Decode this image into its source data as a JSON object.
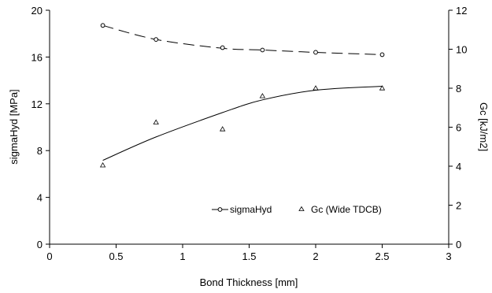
{
  "chart_data": {
    "type": "scatter",
    "title": "",
    "xlabel": "Bond Thickness [mm]",
    "ylabel_left": "sigmaHyd [MPa]",
    "ylabel_right": "Gc [kJ/m2]",
    "xlim": [
      0,
      3
    ],
    "ylim_left": [
      0,
      20
    ],
    "ylim_right": [
      0,
      12
    ],
    "x_ticks": [
      "0",
      "0.5",
      "1",
      "1.5",
      "2",
      "2.5",
      "3"
    ],
    "y_left_ticks": [
      "0",
      "4",
      "8",
      "12",
      "16",
      "20"
    ],
    "y_right_ticks": [
      "0",
      "2",
      "4",
      "6",
      "8",
      "10",
      "12"
    ],
    "grid": false,
    "legend_position": "bottom-right",
    "series": [
      {
        "name": "sigmaHyd",
        "axis": "left",
        "marker": "circle",
        "line": "dashed-trend",
        "x": [
          0.4,
          0.8,
          1.3,
          1.6,
          2.0,
          2.5
        ],
        "y": [
          18.7,
          17.5,
          16.8,
          16.6,
          16.4,
          16.2
        ]
      },
      {
        "name": "Gc (Wide TDCB)",
        "axis": "right",
        "marker": "triangle",
        "line": "solid-trend",
        "x": [
          0.4,
          0.8,
          1.3,
          1.6,
          2.0,
          2.5
        ],
        "y": [
          4.05,
          6.25,
          5.9,
          7.6,
          8.0,
          8.0
        ]
      }
    ],
    "trendlines": [
      {
        "series": "sigmaHyd",
        "style": "dashed",
        "x": [
          0.4,
          0.8,
          1.3,
          1.6,
          2.0,
          2.5
        ],
        "y": [
          18.7,
          17.5,
          16.75,
          16.6,
          16.4,
          16.2
        ]
      },
      {
        "series": "Gc (Wide TDCB)",
        "style": "solid",
        "x": [
          0.4,
          0.8,
          1.3,
          1.6,
          2.0,
          2.5
        ],
        "y": [
          4.3,
          5.5,
          6.75,
          7.4,
          7.9,
          8.1
        ]
      }
    ]
  }
}
